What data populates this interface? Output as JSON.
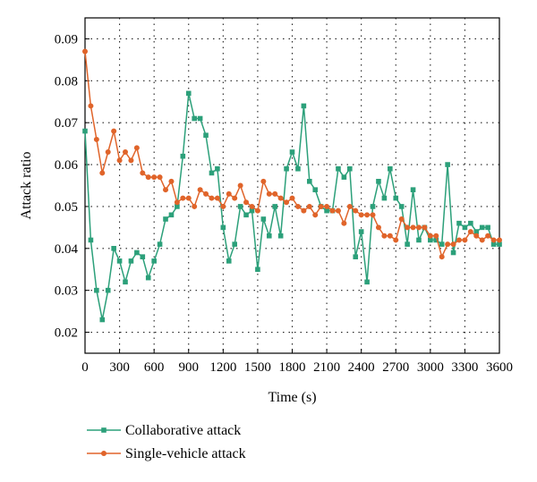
{
  "chart_data": {
    "type": "line",
    "title": "",
    "xlabel": "Time (s)",
    "ylabel": "Attack ratio",
    "xlim": [
      0,
      3600
    ],
    "ylim": [
      0.015,
      0.095
    ],
    "xticks": [
      0,
      300,
      600,
      900,
      1200,
      1500,
      1800,
      2100,
      2400,
      2700,
      3000,
      3300,
      3600
    ],
    "yticks": [
      0.02,
      0.03,
      0.04,
      0.05,
      0.06,
      0.07,
      0.08,
      0.09
    ],
    "xtick_labels": [
      "0",
      "300",
      "600",
      "900",
      "1200",
      "1500",
      "1800",
      "2100",
      "2400",
      "2700",
      "3000",
      "3300",
      "3600"
    ],
    "ytick_labels": [
      "0.02",
      "0.03",
      "0.04",
      "0.05",
      "0.06",
      "0.07",
      "0.08",
      "0.09"
    ],
    "grid": true,
    "legend_position": "below-left",
    "series": [
      {
        "name": "Collaborative attack",
        "color": "#2ca07a",
        "marker": "square",
        "x": [
          0,
          50,
          100,
          150,
          200,
          250,
          300,
          350,
          400,
          450,
          500,
          550,
          600,
          650,
          700,
          750,
          800,
          850,
          900,
          950,
          1000,
          1050,
          1100,
          1150,
          1200,
          1250,
          1300,
          1350,
          1400,
          1450,
          1500,
          1550,
          1600,
          1650,
          1700,
          1750,
          1800,
          1850,
          1900,
          1950,
          2000,
          2050,
          2100,
          2150,
          2200,
          2250,
          2300,
          2350,
          2400,
          2450,
          2500,
          2550,
          2600,
          2650,
          2700,
          2750,
          2800,
          2850,
          2900,
          2950,
          3000,
          3050,
          3100,
          3150,
          3200,
          3250,
          3300,
          3350,
          3400,
          3450,
          3500,
          3550,
          3600
        ],
        "y": [
          0.068,
          0.042,
          0.03,
          0.023,
          0.03,
          0.04,
          0.037,
          0.032,
          0.037,
          0.039,
          0.038,
          0.033,
          0.037,
          0.041,
          0.047,
          0.048,
          0.05,
          0.062,
          0.077,
          0.071,
          0.071,
          0.067,
          0.058,
          0.059,
          0.045,
          0.037,
          0.041,
          0.05,
          0.048,
          0.049,
          0.035,
          0.047,
          0.043,
          0.05,
          0.043,
          0.059,
          0.063,
          0.059,
          0.074,
          0.056,
          0.054,
          0.05,
          0.049,
          0.049,
          0.059,
          0.057,
          0.059,
          0.038,
          0.044,
          0.032,
          0.05,
          0.056,
          0.052,
          0.059,
          0.052,
          0.05,
          0.041,
          0.054,
          0.042,
          0.045,
          0.042,
          0.042,
          0.041,
          0.06,
          0.039,
          0.046,
          0.045,
          0.046,
          0.044,
          0.045,
          0.045,
          0.041,
          0.041
        ]
      },
      {
        "name": "Single-vehicle attack",
        "color": "#e0642a",
        "marker": "circle",
        "x": [
          0,
          50,
          100,
          150,
          200,
          250,
          300,
          350,
          400,
          450,
          500,
          550,
          600,
          650,
          700,
          750,
          800,
          850,
          900,
          950,
          1000,
          1050,
          1100,
          1150,
          1200,
          1250,
          1300,
          1350,
          1400,
          1450,
          1500,
          1550,
          1600,
          1650,
          1700,
          1750,
          1800,
          1850,
          1900,
          1950,
          2000,
          2050,
          2100,
          2150,
          2200,
          2250,
          2300,
          2350,
          2400,
          2450,
          2500,
          2550,
          2600,
          2650,
          2700,
          2750,
          2800,
          2850,
          2900,
          2950,
          3000,
          3050,
          3100,
          3150,
          3200,
          3250,
          3300,
          3350,
          3400,
          3450,
          3500,
          3550,
          3600
        ],
        "y": [
          0.087,
          0.074,
          0.066,
          0.058,
          0.063,
          0.068,
          0.061,
          0.063,
          0.061,
          0.064,
          0.058,
          0.057,
          0.057,
          0.057,
          0.054,
          0.056,
          0.051,
          0.052,
          0.052,
          0.05,
          0.054,
          0.053,
          0.052,
          0.052,
          0.05,
          0.053,
          0.052,
          0.055,
          0.051,
          0.05,
          0.049,
          0.056,
          0.053,
          0.053,
          0.052,
          0.051,
          0.052,
          0.05,
          0.049,
          0.05,
          0.048,
          0.05,
          0.05,
          0.049,
          0.049,
          0.046,
          0.05,
          0.049,
          0.048,
          0.048,
          0.048,
          0.045,
          0.043,
          0.043,
          0.042,
          0.047,
          0.045,
          0.045,
          0.045,
          0.045,
          0.043,
          0.043,
          0.038,
          0.041,
          0.041,
          0.042,
          0.042,
          0.044,
          0.043,
          0.042,
          0.043,
          0.042,
          0.042
        ]
      }
    ]
  }
}
